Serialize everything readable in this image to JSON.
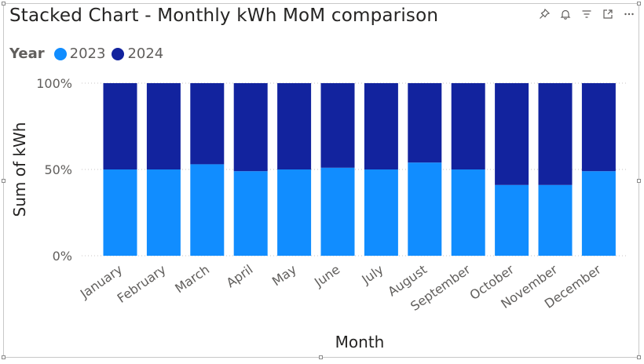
{
  "header": {
    "title": "Stacked Chart - Monthly kWh MoM comparison",
    "icons": [
      "pin-icon",
      "bell-icon",
      "filter-icon",
      "focus-mode-icon",
      "more-options-icon"
    ]
  },
  "legend": {
    "title": "Year",
    "items": [
      {
        "label": "2023",
        "color": "#118dff"
      },
      {
        "label": "2024",
        "color": "#12239e"
      }
    ]
  },
  "chart_data": {
    "type": "bar",
    "stacked": "100%",
    "title": "Stacked Chart - Monthly kWh MoM comparison",
    "xlabel": "Month",
    "ylabel": "Sum of kWh",
    "ylim": [
      0,
      100
    ],
    "yticks": [
      "0%",
      "50%",
      "100%"
    ],
    "grid": true,
    "legend_position": "top-left",
    "categories": [
      "January",
      "February",
      "March",
      "April",
      "May",
      "June",
      "July",
      "August",
      "September",
      "October",
      "November",
      "December"
    ],
    "series": [
      {
        "name": "2023",
        "color": "#118dff",
        "values": [
          50,
          50,
          53,
          49,
          50,
          51,
          50,
          54,
          50,
          41,
          41,
          49
        ]
      },
      {
        "name": "2024",
        "color": "#12239e",
        "values": [
          50,
          50,
          47,
          51,
          50,
          49,
          50,
          46,
          50,
          59,
          59,
          51
        ]
      }
    ]
  }
}
